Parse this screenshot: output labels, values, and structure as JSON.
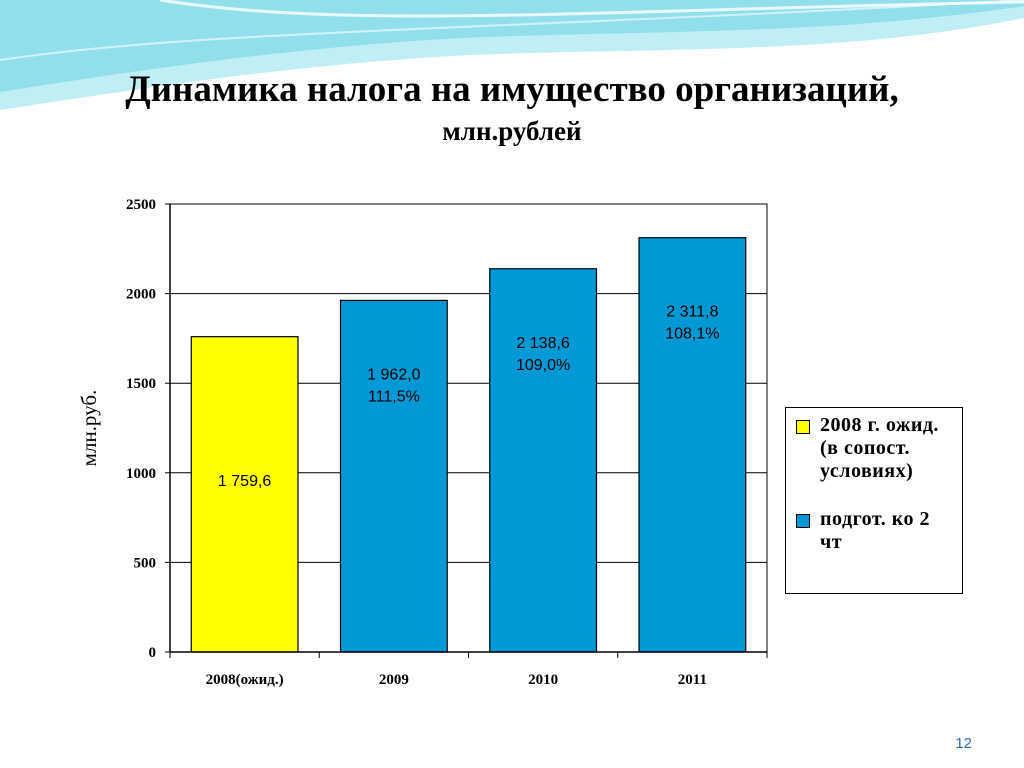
{
  "slide": {
    "title": "Динамика налога на имущество организаций,",
    "subtitle": "млн.рублей",
    "page_number": "12"
  },
  "colors": {
    "yellow_bar": "#ffff00",
    "blue_bar": "#0099d6",
    "wave_light": "#bfeff5",
    "wave_mid": "#7fd9e8",
    "page_number": "#2a6fb0"
  },
  "legend": {
    "items": [
      {
        "label": "2008 г. ожид.(в сопост. условиях)",
        "color": "#ffff00"
      },
      {
        "label": "подгот. ко 2 чт",
        "color": "#0099d6"
      }
    ]
  },
  "chart_data": {
    "type": "bar",
    "ylabel": "млн.руб.",
    "ylim": [
      0,
      2500
    ],
    "yticks": [
      0,
      500,
      1000,
      1500,
      2000,
      2500
    ],
    "grid": true,
    "legend_position": "right",
    "categories": [
      "2008(ожид.)",
      "2009",
      "2010",
      "2011"
    ],
    "values": [
      1759.6,
      1962.0,
      2138.6,
      2311.8
    ],
    "series_index": [
      0,
      1,
      1,
      1
    ],
    "labels": [
      [
        "1 759,6"
      ],
      [
        "1 962,0",
        "111,5%"
      ],
      [
        "2 138,6",
        "109,0%"
      ],
      [
        "2 311,8",
        "108,1%"
      ]
    ]
  }
}
